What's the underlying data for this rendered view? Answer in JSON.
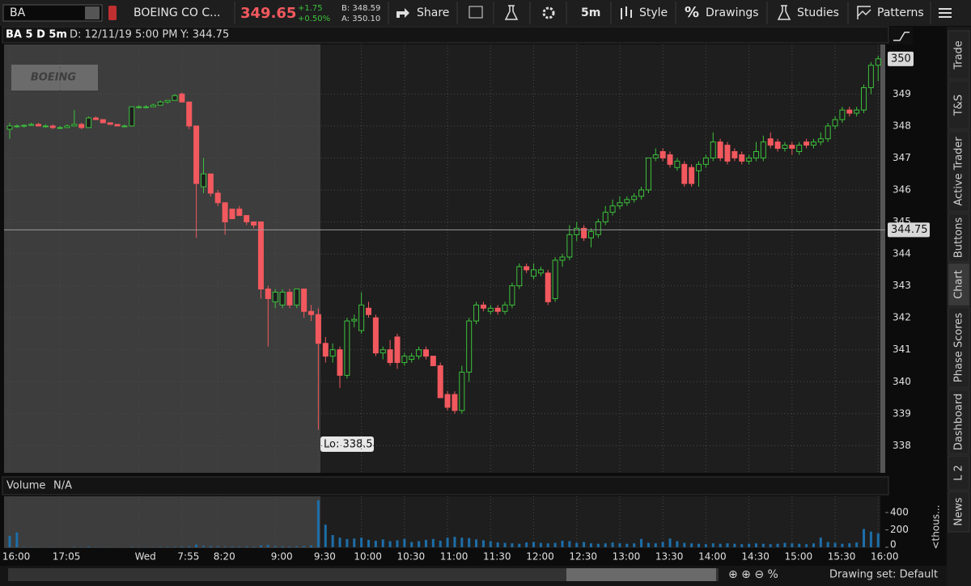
{
  "toolbar": {
    "symbol": "BA",
    "company": "BOEING CO C...",
    "last": "349.65",
    "change": "+1.75",
    "change_pct": "+0.50%",
    "bid": "B: 348.59",
    "ask": "A: 350.10",
    "share": "Share",
    "timeframe": "5m",
    "style": "Style",
    "drawings": "Drawings",
    "studies": "Studies",
    "patterns": "Patterns"
  },
  "chart_header": {
    "study": "BA 5 D 5m",
    "date": "D: 12/11/19 5:00 PM",
    "y": "Y: 344.75"
  },
  "watermark": "BOEING",
  "low_annotation": "Lo: 338.5",
  "side_tabs": [
    "Trade",
    "T&S",
    "Active Trader",
    "Buttons",
    "Chart",
    "Phase Scores",
    "Dashboard",
    "L 2",
    "News"
  ],
  "footer": "Drawing set: Default",
  "chart_data": [
    {
      "type": "candlestick",
      "categories": [
        "16:00",
        null,
        null,
        null,
        null,
        null,
        null,
        "17:05",
        null,
        null,
        null,
        null,
        null,
        null,
        null,
        null,
        null,
        null,
        "Wed",
        null,
        null,
        null,
        null,
        null,
        "7:55",
        null,
        null,
        null,
        null,
        "8:20",
        null,
        null,
        null,
        null,
        null,
        null,
        null,
        "9:00",
        null,
        null,
        null,
        null,
        null,
        "9:30",
        null,
        null,
        null,
        null,
        null,
        "10:00",
        null,
        null,
        null,
        null,
        null,
        "10:30",
        null,
        null,
        null,
        null,
        null,
        "11:00",
        null,
        null,
        null,
        null,
        null,
        "11:30",
        null,
        null,
        null,
        null,
        null,
        "12:00",
        null,
        null,
        null,
        null,
        null,
        "12:30",
        null,
        null,
        null,
        null,
        null,
        "13:00",
        null,
        null,
        null,
        null,
        null,
        "13:30",
        null,
        null,
        null,
        null,
        null,
        "14:00",
        null,
        null,
        null,
        null,
        null,
        "14:30",
        null,
        null,
        null,
        null,
        null,
        "15:00",
        null,
        null,
        null,
        null,
        null,
        "15:30",
        null,
        null,
        null,
        null,
        null,
        "16:00"
      ],
      "ohlc": [
        [
          347.9,
          348.1,
          347.6,
          348.0
        ],
        [
          348.0,
          348.05,
          347.95,
          348.0
        ],
        [
          348.0,
          348.05,
          347.95,
          348.02
        ],
        [
          348.02,
          348.1,
          348.0,
          348.05
        ],
        [
          348.05,
          348.1,
          348.0,
          348.0
        ],
        [
          348.0,
          348.05,
          347.95,
          348.0
        ],
        [
          348.0,
          348.05,
          347.9,
          347.95
        ],
        [
          347.95,
          348.0,
          347.9,
          347.95
        ],
        [
          347.95,
          348.05,
          347.95,
          348.0
        ],
        [
          348.0,
          348.5,
          348.0,
          348.05
        ],
        [
          348.05,
          348.1,
          347.9,
          347.95
        ],
        [
          347.95,
          348.3,
          347.95,
          348.25
        ],
        [
          348.25,
          348.3,
          348.2,
          348.2
        ],
        [
          348.2,
          348.2,
          348.1,
          348.1
        ],
        [
          348.1,
          348.1,
          348.05,
          348.05
        ],
        [
          348.05,
          348.05,
          348.0,
          348.0
        ],
        [
          348.0,
          348.05,
          348.0,
          348.0
        ],
        [
          348.0,
          348.6,
          348.0,
          348.6
        ],
        [
          348.6,
          348.65,
          348.55,
          348.6
        ],
        [
          348.6,
          348.65,
          348.55,
          348.6
        ],
        [
          348.6,
          348.7,
          348.6,
          348.65
        ],
        [
          348.65,
          348.8,
          348.65,
          348.75
        ],
        [
          348.75,
          348.8,
          348.7,
          348.8
        ],
        [
          348.8,
          349.0,
          348.8,
          348.95
        ],
        [
          349.0,
          349.05,
          348.75,
          348.75
        ],
        [
          348.75,
          348.75,
          347.9,
          348.0
        ],
        [
          348.0,
          348.0,
          344.5,
          346.2
        ],
        [
          346.1,
          347.0,
          345.9,
          346.5
        ],
        [
          346.5,
          346.5,
          345.8,
          345.9
        ],
        [
          345.9,
          346.0,
          345.5,
          345.6
        ],
        [
          345.6,
          345.6,
          344.6,
          345.0
        ],
        [
          345.4,
          345.4,
          345.1,
          345.1
        ],
        [
          345.4,
          345.5,
          345.2,
          345.2
        ],
        [
          345.2,
          345.2,
          344.9,
          345.0
        ],
        [
          345.0,
          345.0,
          344.8,
          344.9
        ],
        [
          345.0,
          345.0,
          342.6,
          342.9
        ],
        [
          342.9,
          343.0,
          341.1,
          342.6
        ],
        [
          342.5,
          342.9,
          342.3,
          342.8
        ],
        [
          342.4,
          342.9,
          342.3,
          342.8
        ],
        [
          342.8,
          342.9,
          342.3,
          342.4
        ],
        [
          342.4,
          342.9,
          342.3,
          342.9
        ],
        [
          342.9,
          342.9,
          342.0,
          342.2
        ],
        [
          342.2,
          342.4,
          341.9,
          342.1
        ],
        [
          342.1,
          342.3,
          338.5,
          341.2
        ],
        [
          341.2,
          341.4,
          340.6,
          340.8
        ],
        [
          340.8,
          341.2,
          340.6,
          341.0
        ],
        [
          341.0,
          341.1,
          339.8,
          340.2
        ],
        [
          340.2,
          342.0,
          340.1,
          341.9
        ],
        [
          341.9,
          342.1,
          341.7,
          341.95
        ],
        [
          341.6,
          342.8,
          341.5,
          342.4
        ],
        [
          342.3,
          342.5,
          342.0,
          342.1
        ],
        [
          342.0,
          342.1,
          340.8,
          340.9
        ],
        [
          340.9,
          341.1,
          340.7,
          341.0
        ],
        [
          341.0,
          341.3,
          340.5,
          340.6
        ],
        [
          341.4,
          341.5,
          340.4,
          340.6
        ],
        [
          340.6,
          340.9,
          340.5,
          340.8
        ],
        [
          340.7,
          340.9,
          340.6,
          340.8
        ],
        [
          340.8,
          341.1,
          340.7,
          341.0
        ],
        [
          341.0,
          341.1,
          340.7,
          340.8
        ],
        [
          340.8,
          340.8,
          340.5,
          340.5
        ],
        [
          340.5,
          340.6,
          339.5,
          339.5
        ],
        [
          339.6,
          339.7,
          339.1,
          339.2
        ],
        [
          339.6,
          339.7,
          339.0,
          339.1
        ],
        [
          339.1,
          340.5,
          339.0,
          340.3
        ],
        [
          340.3,
          342.0,
          340.0,
          341.9
        ],
        [
          341.9,
          342.5,
          341.8,
          342.4
        ],
        [
          342.4,
          342.5,
          342.2,
          342.3
        ],
        [
          342.2,
          342.4,
          342.1,
          342.3
        ],
        [
          342.3,
          342.4,
          342.1,
          342.2
        ],
        [
          342.2,
          342.5,
          342.1,
          342.4
        ],
        [
          342.4,
          343.1,
          342.3,
          343.0
        ],
        [
          343.0,
          343.7,
          342.9,
          343.6
        ],
        [
          343.6,
          343.7,
          343.4,
          343.5
        ],
        [
          343.3,
          343.7,
          343.2,
          343.5
        ],
        [
          343.4,
          343.6,
          343.3,
          343.5
        ],
        [
          343.4,
          343.5,
          342.4,
          342.5
        ],
        [
          342.6,
          343.9,
          342.5,
          343.8
        ],
        [
          343.8,
          344.0,
          343.6,
          343.9
        ],
        [
          343.9,
          344.9,
          343.8,
          344.6
        ],
        [
          344.6,
          345.0,
          344.4,
          344.8
        ],
        [
          344.8,
          344.9,
          344.4,
          344.5
        ],
        [
          344.5,
          344.8,
          344.2,
          344.7
        ],
        [
          344.6,
          345.1,
          344.5,
          345.0
        ],
        [
          345.0,
          345.5,
          344.9,
          345.3
        ],
        [
          345.3,
          345.7,
          345.2,
          345.5
        ],
        [
          345.5,
          345.8,
          345.4,
          345.6
        ],
        [
          345.6,
          345.8,
          345.5,
          345.7
        ],
        [
          345.7,
          345.9,
          345.6,
          345.8
        ],
        [
          345.8,
          346.1,
          345.7,
          346.0
        ],
        [
          346.0,
          347.0,
          345.9,
          347.0
        ],
        [
          347.0,
          347.3,
          346.9,
          347.1
        ],
        [
          347.2,
          347.3,
          346.9,
          347.0
        ],
        [
          347.1,
          347.2,
          346.7,
          346.8
        ],
        [
          346.7,
          347.0,
          346.6,
          346.9
        ],
        [
          346.8,
          346.9,
          346.1,
          346.2
        ],
        [
          346.7,
          346.8,
          346.1,
          346.2
        ],
        [
          346.6,
          346.9,
          346.1,
          346.8
        ],
        [
          346.8,
          347.1,
          346.7,
          347.0
        ],
        [
          347.0,
          347.8,
          346.9,
          347.5
        ],
        [
          347.5,
          347.6,
          346.9,
          347.0
        ],
        [
          347.4,
          347.5,
          346.8,
          346.9
        ],
        [
          347.2,
          347.3,
          346.9,
          347.0
        ],
        [
          347.1,
          347.2,
          346.8,
          346.9
        ],
        [
          346.9,
          347.1,
          346.8,
          347.0
        ],
        [
          347.0,
          347.5,
          346.9,
          347.2
        ],
        [
          347.0,
          347.7,
          346.9,
          347.5
        ],
        [
          347.6,
          347.8,
          347.3,
          347.4
        ],
        [
          347.5,
          347.6,
          347.2,
          347.3
        ],
        [
          347.3,
          347.5,
          347.2,
          347.4
        ],
        [
          347.4,
          347.5,
          347.1,
          347.3
        ],
        [
          347.2,
          347.5,
          347.1,
          347.4
        ],
        [
          347.5,
          347.6,
          347.3,
          347.4
        ],
        [
          347.4,
          347.6,
          347.3,
          347.5
        ],
        [
          347.5,
          347.8,
          347.4,
          347.6
        ],
        [
          347.6,
          348.1,
          347.5,
          348.0
        ],
        [
          348.0,
          348.3,
          347.9,
          348.2
        ],
        [
          348.2,
          348.6,
          348.1,
          348.5
        ],
        [
          348.5,
          348.6,
          348.3,
          348.4
        ],
        [
          348.4,
          348.6,
          348.3,
          348.5
        ],
        [
          348.5,
          349.3,
          348.4,
          349.2
        ],
        [
          349.2,
          350.0,
          349.0,
          349.9
        ],
        [
          349.9,
          350.2,
          349.4,
          350.1
        ]
      ],
      "up_color": "#3cc13c",
      "down_color": "#f2595e",
      "ylim": [
        337.2,
        350.5
      ],
      "yticks": [
        338,
        339,
        340,
        341,
        342,
        343,
        344,
        345,
        346,
        347,
        348,
        349
      ],
      "grid": true,
      "last_price": {
        "value": 350.1,
        "label": "350"
      },
      "crosshair": {
        "value": 344.75,
        "label": "344.75"
      }
    },
    {
      "type": "bar",
      "title": "Volume",
      "subtitle": "N/A",
      "unit": "<thous...",
      "values": [
        130,
        170,
        5,
        3,
        2,
        2,
        3,
        2,
        2,
        5,
        3,
        8,
        2,
        2,
        2,
        2,
        2,
        5,
        3,
        3,
        3,
        4,
        4,
        5,
        8,
        10,
        30,
        15,
        12,
        10,
        8,
        10,
        6,
        8,
        6,
        20,
        25,
        12,
        10,
        8,
        10,
        12,
        20,
        540,
        260,
        140,
        110,
        95,
        100,
        110,
        85,
        75,
        90,
        70,
        80,
        95,
        60,
        70,
        85,
        95,
        75,
        110,
        120,
        110,
        105,
        90,
        80,
        70,
        55,
        50,
        45,
        40,
        55,
        60,
        50,
        45,
        50,
        75,
        70,
        50,
        60,
        45,
        40,
        45,
        55,
        45,
        40,
        45,
        95,
        50,
        45,
        60,
        100,
        70,
        50,
        45,
        40,
        35,
        45,
        40,
        45,
        40,
        35,
        40,
        45,
        40,
        35,
        40,
        50,
        45,
        40,
        35,
        45,
        110,
        60,
        50,
        40,
        45,
        55,
        210,
        180,
        160
      ],
      "color": "#1d6ea8",
      "ylim": [
        0,
        550
      ],
      "yticks": [
        0,
        200,
        400
      ]
    }
  ]
}
